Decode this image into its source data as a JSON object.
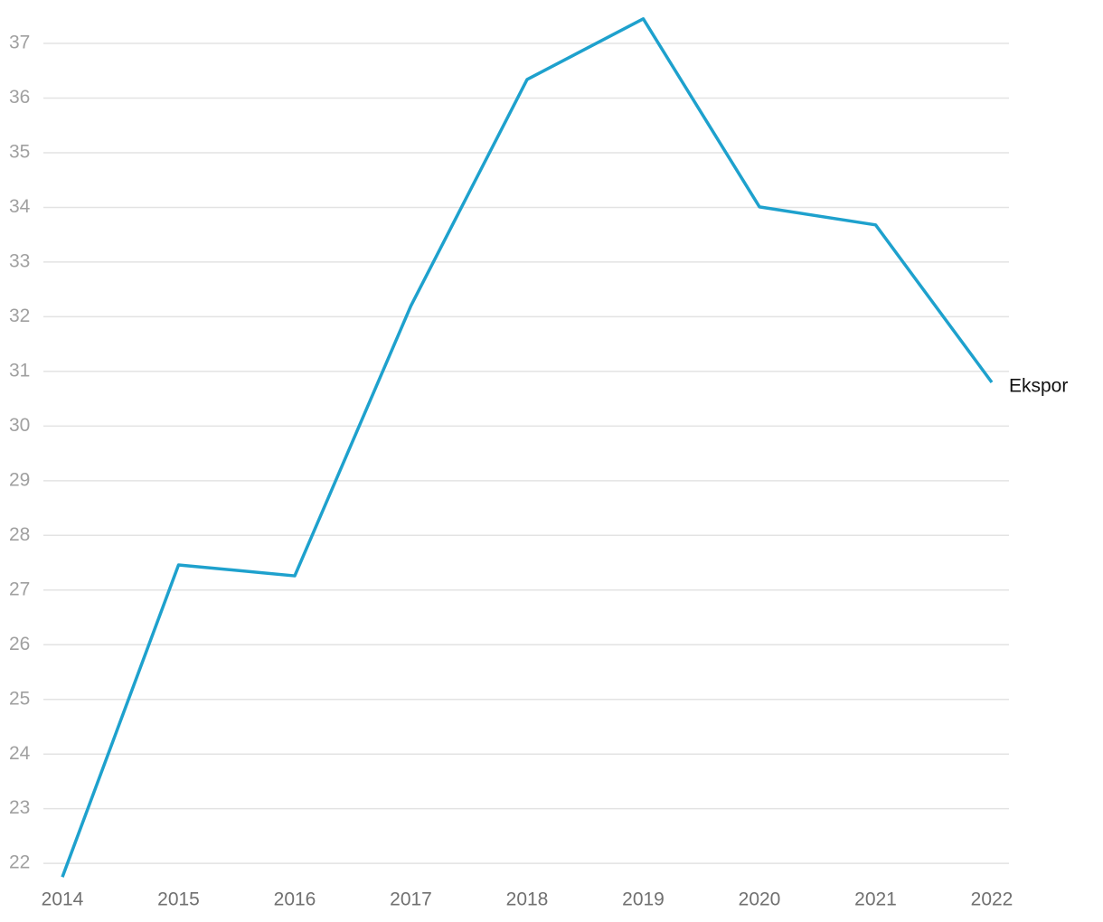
{
  "chart_data": {
    "type": "line",
    "categories": [
      "2014",
      "2015",
      "2016",
      "2017",
      "2018",
      "2019",
      "2020",
      "2021",
      "2022"
    ],
    "series": [
      {
        "name": "Ekspor",
        "color": "#1ea1cd",
        "values": [
          21.75,
          27.46,
          27.26,
          32.2,
          36.34,
          37.45,
          34.01,
          33.68,
          30.8
        ]
      }
    ],
    "ylim": [
      21.7,
      37.5
    ],
    "yticks": [
      22,
      23,
      24,
      25,
      26,
      27,
      28,
      29,
      30,
      31,
      32,
      33,
      34,
      35,
      36,
      37
    ],
    "grid": true
  }
}
